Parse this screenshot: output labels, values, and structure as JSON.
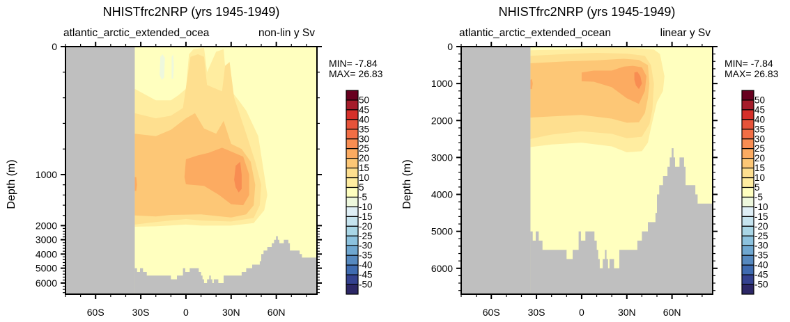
{
  "chart_data": [
    {
      "type": "heatmap",
      "subtype": "filled-contour",
      "title": "NHISTfrc2NRP (yrs 1945-1949)",
      "left_subtitle": "atlantic_arctic_extended_ocea",
      "right_subtitle": "non-lin y Sv",
      "ylabel": "Depth (m)",
      "xlabel": "",
      "y_scale": "non-linear (stretched upper ocean)",
      "xlim": [
        -80,
        87
      ],
      "ylim": [
        0,
        6700
      ],
      "x_ticks": [
        {
          "v": -60,
          "label": "60S"
        },
        {
          "v": -30,
          "label": "30S"
        },
        {
          "v": 0,
          "label": "0"
        },
        {
          "v": 30,
          "label": "30N"
        },
        {
          "v": 60,
          "label": "60N"
        }
      ],
      "y_ticks": [
        {
          "v": 0,
          "label": "0"
        },
        {
          "v": 1000,
          "label": "1000"
        },
        {
          "v": 2000,
          "label": "2000"
        },
        {
          "v": 3000,
          "label": "3000"
        },
        {
          "v": 4000,
          "label": "4000"
        },
        {
          "v": 5000,
          "label": "5000"
        },
        {
          "v": 6000,
          "label": "6000"
        }
      ],
      "min_label": "MIN= -7.84",
      "max_label": "MAX= 26.83",
      "min": -7.84,
      "max": 26.83,
      "units": "Sv"
    },
    {
      "type": "heatmap",
      "subtype": "filled-contour",
      "title": "NHISTfrc2NRP (yrs 1945-1949)",
      "left_subtitle": "atlantic_arctic_extended_ocean",
      "right_subtitle": "linear y Sv",
      "ylabel": "Depth (m)",
      "xlabel": "",
      "y_scale": "linear",
      "xlim": [
        -80,
        87
      ],
      "ylim": [
        0,
        6700
      ],
      "x_ticks": [
        {
          "v": -60,
          "label": "60S"
        },
        {
          "v": -30,
          "label": "30S"
        },
        {
          "v": 0,
          "label": "0"
        },
        {
          "v": 30,
          "label": "30N"
        },
        {
          "v": 60,
          "label": "60N"
        }
      ],
      "y_ticks": [
        {
          "v": 0,
          "label": "0"
        },
        {
          "v": 1000,
          "label": "1000"
        },
        {
          "v": 2000,
          "label": "2000"
        },
        {
          "v": 3000,
          "label": "3000"
        },
        {
          "v": 4000,
          "label": "4000"
        },
        {
          "v": 5000,
          "label": "5000"
        },
        {
          "v": 6000,
          "label": "6000"
        }
      ],
      "min_label": "MIN= -7.84",
      "max_label": "MAX= 26.83",
      "min": -7.84,
      "max": 26.83,
      "units": "Sv"
    }
  ],
  "colorbar": {
    "levels": [
      "50",
      "45",
      "40",
      "35",
      "30",
      "25",
      "20",
      "15",
      "10",
      "5",
      "-5",
      "-10",
      "-15",
      "-20",
      "-25",
      "-30",
      "-35",
      "-40",
      "-45",
      "-50"
    ],
    "colors": [
      "#67001f",
      "#a51c2a",
      "#d6302a",
      "#e7533a",
      "#f26e45",
      "#f88d52",
      "#fcab61",
      "#fdc776",
      "#fedf8f",
      "#ffeda0",
      "#ffffbf",
      "#eef8dd",
      "#dfeff6",
      "#c6e4ef",
      "#a9d6e6",
      "#8cc2de",
      "#6fa7d0",
      "#5689bf",
      "#3f6bb0",
      "#34428f",
      "#2c2766"
    ]
  },
  "land_color": "#bfbfbf"
}
